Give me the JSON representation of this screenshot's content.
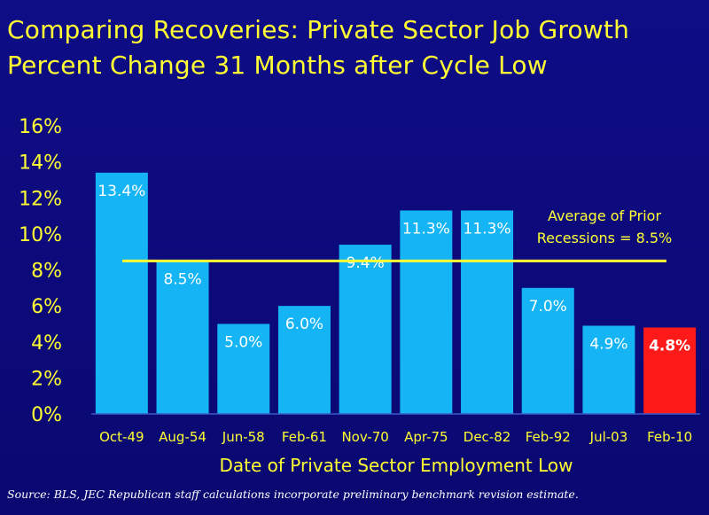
{
  "title_line1": "Comparing Recoveries:  Private Sector Job Growth",
  "title_line2": "Percent Change 31 Months after Cycle Low",
  "source": "Source:  BLS, JEC Republican staff calculations incorporate preliminary benchmark revision estimate.",
  "colors": {
    "background": "#0d0b7c",
    "title": "#ffff33",
    "bar": "#14b4f5",
    "highlight_bar": "#ff1a1a",
    "average_line": "#ffff33",
    "label": "#ffffff",
    "axis_text": "#ffff33"
  },
  "chart_data": {
    "type": "bar",
    "categories": [
      "Oct-49",
      "Aug-54",
      "Jun-58",
      "Feb-61",
      "Nov-70",
      "Apr-75",
      "Dec-82",
      "Feb-92",
      "Jul-03",
      "Feb-10"
    ],
    "values": [
      13.4,
      8.5,
      5.0,
      6.0,
      9.4,
      11.3,
      11.3,
      7.0,
      4.9,
      4.8
    ],
    "value_labels": [
      "13.4%",
      "8.5%",
      "5.0%",
      "6.0%",
      "9.4%",
      "11.3%",
      "11.3%",
      "7.0%",
      "4.9%",
      "4.8%"
    ],
    "highlight_index": 9,
    "xlabel": "Date of Private Sector Employment Low",
    "ylabel": "",
    "ylim": [
      0,
      16
    ],
    "yticks": [
      0,
      2,
      4,
      6,
      8,
      10,
      12,
      14,
      16
    ],
    "ytick_labels": [
      "0%",
      "2%",
      "4%",
      "6%",
      "8%",
      "10%",
      "12%",
      "14%",
      "16%"
    ],
    "grid": false,
    "reference_line": {
      "value": 8.5,
      "label_line1": "Average of Prior",
      "label_line2": "Recessions = 8.5%"
    }
  }
}
